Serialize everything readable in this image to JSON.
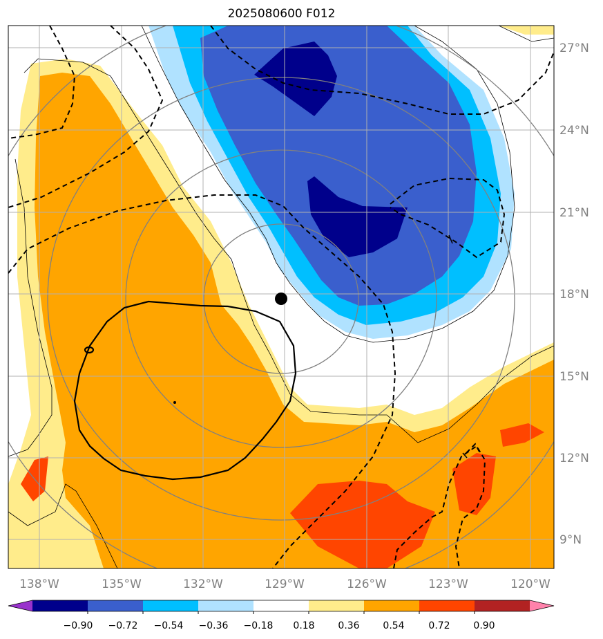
{
  "title": "2025080600 F012",
  "map": {
    "projection": "PlateCarree",
    "lon_range": [
      -139,
      -119
    ],
    "lat_range": [
      7.7,
      27.8
    ],
    "lon_ticks": [
      "138°W",
      "135°W",
      "132°W",
      "129°W",
      "126°W",
      "123°W",
      "120°W"
    ],
    "lat_ticks": [
      "27°N",
      "24°N",
      "21°N",
      "18°N",
      "15°N",
      "12°N",
      "9°N"
    ],
    "gridlines": true,
    "storm_center": {
      "lon": -129.0,
      "lat": 17.8
    },
    "range_rings": "grey concentric rings around storm center",
    "overlays": [
      "filled anomaly contours",
      "black dashed contours",
      "black solid contour",
      "thin black contour outlines"
    ]
  },
  "colorbar": {
    "orientation": "horizontal",
    "extend": "both",
    "colors": [
      "#9932cc",
      "#00008b",
      "#3a5fcd",
      "#00bfff",
      "#b0e2ff",
      "#ffffff",
      "#ffec8b",
      "#ffa500",
      "#ff4500",
      "#b22222",
      "#ff82ab"
    ],
    "tick_labels": [
      "−0.90",
      "−0.72",
      "−0.54",
      "−0.36",
      "−0.18",
      "0.18",
      "0.36",
      "0.54",
      "0.72",
      "0.90"
    ]
  }
}
